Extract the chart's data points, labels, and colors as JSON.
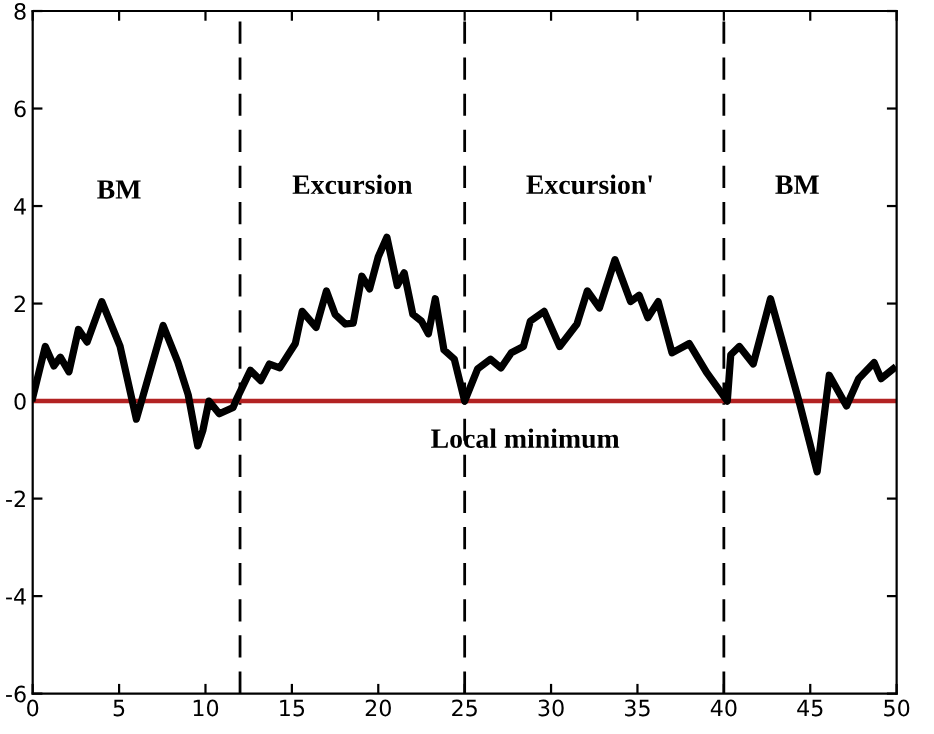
{
  "chart_data": {
    "type": "line",
    "x": [
      0.0,
      0.73,
      1.23,
      1.6,
      2.1,
      2.65,
      3.15,
      4.0,
      5.06,
      6.0,
      7.55,
      8.4,
      9.0,
      9.55,
      9.85,
      10.2,
      10.8,
      11.6,
      11.8,
      12.6,
      13.2,
      13.7,
      14.3,
      15.2,
      15.6,
      16.4,
      17.0,
      17.5,
      18.1,
      18.55,
      19.05,
      19.5,
      20.0,
      20.5,
      21.1,
      21.5,
      22.0,
      22.5,
      22.9,
      23.3,
      23.8,
      24.4,
      25.0,
      25.75,
      26.5,
      27.1,
      27.7,
      28.4,
      28.8,
      29.6,
      30.5,
      31.5,
      32.1,
      32.8,
      33.7,
      34.6,
      35.1,
      35.6,
      36.2,
      37.0,
      38.0,
      39.0,
      40.2,
      40.4,
      40.9,
      41.7,
      42.7,
      44.4,
      45.4,
      46.1,
      47.1,
      47.8,
      48.7,
      49.1,
      49.8
    ],
    "series": [
      {
        "color": "#000000",
        "values": [
          0.07,
          1.12,
          0.72,
          0.9,
          0.6,
          1.47,
          1.21,
          2.04,
          1.12,
          -0.37,
          1.55,
          0.8,
          0.13,
          -0.92,
          -0.6,
          0.0,
          -0.26,
          -0.13,
          0.04,
          0.63,
          0.42,
          0.76,
          0.68,
          1.18,
          1.84,
          1.51,
          2.26,
          1.78,
          1.58,
          1.6,
          2.56,
          2.3,
          2.96,
          3.36,
          2.37,
          2.63,
          1.78,
          1.64,
          1.38,
          2.1,
          1.05,
          0.86,
          0.0,
          0.66,
          0.86,
          0.68,
          0.99,
          1.12,
          1.64,
          1.84,
          1.12,
          1.58,
          2.26,
          1.91,
          2.9,
          2.04,
          2.17,
          1.71,
          2.04,
          0.99,
          1.18,
          0.59,
          0.0,
          0.95,
          1.12,
          0.76,
          2.1,
          -0.07,
          -1.45,
          0.53,
          -0.1,
          0.46,
          0.79,
          0.46,
          0.66
        ]
      }
    ],
    "xlim": [
      0,
      50
    ],
    "xticks": [
      0,
      5,
      10,
      15,
      20,
      25,
      30,
      35,
      40,
      45,
      50
    ],
    "ylim": [
      -6,
      8
    ],
    "yticks": [
      -6,
      -4,
      -2,
      0,
      2,
      4,
      6,
      8
    ],
    "grid": false,
    "marker": "none",
    "line_style": "solid",
    "ref_lines": [
      {
        "axis": "y",
        "value": 0,
        "color": "#b22222",
        "line_style": "solid"
      },
      {
        "axis": "x",
        "value": 12,
        "color": "#000000",
        "line_style": "dashed"
      },
      {
        "axis": "x",
        "value": 25,
        "color": "#000000",
        "line_style": "dashed"
      },
      {
        "axis": "x",
        "value": 40,
        "color": "#000000",
        "line_style": "dashed"
      }
    ],
    "annotations": [
      "BM",
      "Excursion",
      "Excursion'",
      "BM",
      "Local minimum"
    ]
  }
}
